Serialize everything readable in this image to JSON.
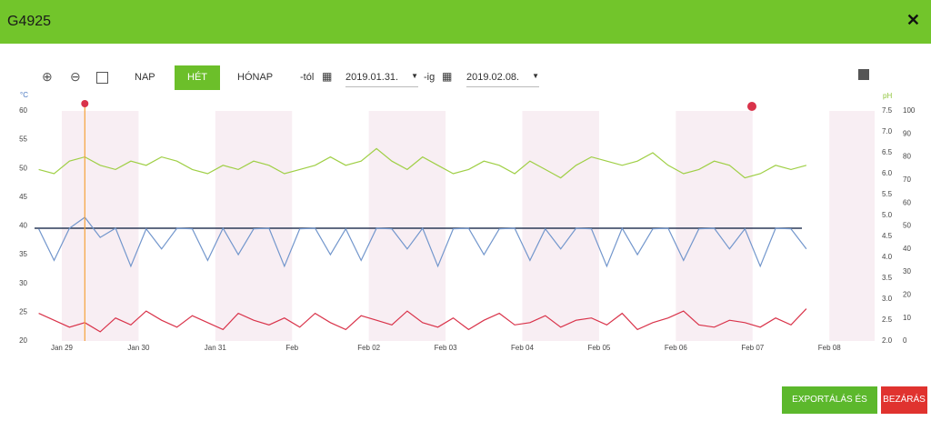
{
  "header": {
    "title": "G4925"
  },
  "toolbar": {
    "periods": [
      "NAP",
      "HÉT",
      "HÓNAP"
    ],
    "active": 1,
    "from_label": "-tól",
    "from_date": "2019.01.31.",
    "to_label": "-ig",
    "to_date": "2019.02.08."
  },
  "chart_data": {
    "type": "line",
    "y_label": "°C",
    "y2_label": "pH",
    "x": [
      -0.3,
      -0.1,
      0.1,
      0.3,
      0.5,
      0.7,
      0.9,
      1.1,
      1.3,
      1.5,
      1.7,
      1.9,
      2.1,
      2.3,
      2.5,
      2.7,
      2.9,
      3.1,
      3.3,
      3.5,
      3.7,
      3.9,
      4.1,
      4.3,
      4.5,
      4.7,
      4.9,
      5.1,
      5.3,
      5.5,
      5.7,
      5.9,
      6.1,
      6.3,
      6.5,
      6.7,
      6.9,
      7.1,
      7.3,
      7.5,
      7.7,
      7.9,
      8.1,
      8.3,
      8.5,
      8.7,
      8.9,
      9.1,
      9.3,
      9.5,
      9.7
    ],
    "xlim": [
      -0.355,
      10.59
    ],
    "xticks": [
      {
        "value": 0,
        "label": "Jan 29"
      },
      {
        "value": 1,
        "label": "Jan 30"
      },
      {
        "value": 2,
        "label": "Jan 31"
      },
      {
        "value": 3,
        "label": "Feb"
      },
      {
        "value": 4,
        "label": "Feb 02"
      },
      {
        "value": 5,
        "label": "Feb 03"
      },
      {
        "value": 6,
        "label": "Feb 04"
      },
      {
        "value": 7,
        "label": "Feb 05"
      },
      {
        "value": 8,
        "label": "Feb 06"
      },
      {
        "value": 9,
        "label": "Feb 07"
      },
      {
        "value": 10,
        "label": "Feb 08"
      }
    ],
    "ylim": [
      20,
      60
    ],
    "yticks": [
      20,
      25,
      30,
      35,
      40,
      45,
      50,
      55,
      60
    ],
    "y2lim": [
      2,
      7.5
    ],
    "y2ticks": [
      {
        "value": 2,
        "label": "2.0"
      },
      2.5,
      {
        "value": 3,
        "label": "3.0"
      },
      3.5,
      {
        "value": 4,
        "label": "4.0"
      },
      4.5,
      {
        "value": 5,
        "label": "5.0"
      },
      5.5,
      {
        "value": 6,
        "label": "6.0"
      },
      6.5,
      {
        "value": 7,
        "label": "7.0"
      },
      7.5
    ],
    "y3lim": [
      0,
      100
    ],
    "y3ticks": [
      0,
      10,
      20,
      30,
      40,
      50,
      60,
      70,
      80,
      90,
      100
    ],
    "hline": 39.6,
    "vline": 0.3,
    "series": [
      {
        "color": "#7296cc",
        "axis": "y",
        "values": [
          39.5,
          34,
          39.6,
          41.5,
          38,
          39.6,
          33,
          39.5,
          36,
          39.6,
          39.5,
          34,
          39.6,
          35,
          39.5,
          39.6,
          33,
          39.5,
          39.6,
          35,
          39.5,
          34,
          39.6,
          39.5,
          36,
          39.6,
          33,
          39.5,
          39.6,
          35,
          39.5,
          39.6,
          34,
          39.5,
          36,
          39.6,
          39.5,
          33,
          39.6,
          35,
          39.5,
          39.6,
          34,
          39.5,
          39.6,
          36,
          39.5,
          33,
          39.6,
          39.5,
          36
        ]
      },
      {
        "color": "#9fcf45",
        "axis": "y2",
        "values": [
          6.1,
          6.0,
          6.3,
          6.4,
          6.2,
          6.1,
          6.3,
          6.2,
          6.4,
          6.3,
          6.1,
          6.0,
          6.2,
          6.1,
          6.3,
          6.2,
          6.0,
          6.1,
          6.2,
          6.4,
          6.2,
          6.3,
          6.6,
          6.3,
          6.1,
          6.4,
          6.2,
          6.0,
          6.1,
          6.3,
          6.2,
          6.0,
          6.3,
          6.1,
          5.9,
          6.2,
          6.4,
          6.3,
          6.2,
          6.3,
          6.5,
          6.2,
          6.0,
          6.1,
          6.3,
          6.2,
          5.9,
          6.0,
          6.2,
          6.1,
          6.2
        ]
      },
      {
        "color": "#d9334a",
        "axis": "y3",
        "values": [
          12,
          9,
          6,
          8,
          4,
          10,
          7,
          13,
          9,
          6,
          11,
          8,
          5,
          12,
          9,
          7,
          10,
          6,
          12,
          8,
          5,
          11,
          9,
          7,
          13,
          8,
          6,
          10,
          5,
          9,
          12,
          7,
          8,
          11,
          6,
          9,
          10,
          7,
          12,
          5,
          8,
          10,
          13,
          7,
          6,
          9,
          8,
          6,
          10,
          7,
          14
        ]
      }
    ]
  },
  "footer": {
    "export": "EXPORTÁLÁS ÉS BEZÁRÁS",
    "close": "BEZÁRÁS"
  }
}
